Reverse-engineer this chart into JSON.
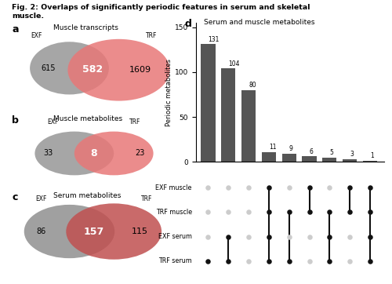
{
  "title": "Fig. 2: Overlaps of significantly periodic features in serum and skeletal\nmuscle.",
  "panel_a_label": "a",
  "panel_a_title": "Muscle transcripts",
  "panel_a_exf": 615,
  "panel_a_overlap": 582,
  "panel_a_trf": 1609,
  "panel_a_left_color": "#909090",
  "panel_a_right_color": "#E87878",
  "panel_b_label": "b",
  "panel_b_title": "Muscle metabolites",
  "panel_b_exf": 33,
  "panel_b_overlap": 8,
  "panel_b_trf": 23,
  "panel_b_left_color": "#909090",
  "panel_b_right_color": "#E87878",
  "panel_c_label": "c",
  "panel_c_title": "Serum metabolites",
  "panel_c_exf": 86,
  "panel_c_overlap": 157,
  "panel_c_trf": 115,
  "panel_c_left_color": "#888888",
  "panel_c_right_color": "#C05050",
  "panel_d_label": "d",
  "panel_d_title": "Serum and muscle metabolites",
  "bar_values": [
    131,
    104,
    80,
    11,
    9,
    6,
    5,
    3,
    1
  ],
  "bar_color": "#555555",
  "ylabel": "Periodic metabolites",
  "ylim": [
    0,
    155
  ],
  "yticks": [
    0,
    50,
    100,
    150
  ],
  "row_labels": [
    "EXF muscle",
    "TRF muscle",
    "EXF serum",
    "TRF serum"
  ],
  "dot_matrix": [
    [
      0,
      0,
      0,
      1,
      0,
      1,
      0,
      1,
      1
    ],
    [
      0,
      0,
      0,
      1,
      1,
      1,
      1,
      1,
      1
    ],
    [
      0,
      1,
      0,
      1,
      0,
      0,
      1,
      0,
      1
    ],
    [
      1,
      1,
      0,
      1,
      1,
      0,
      1,
      0,
      1
    ]
  ],
  "active_dot_color": "#111111",
  "inactive_dot_color": "#cccccc",
  "background_color": "#ffffff"
}
